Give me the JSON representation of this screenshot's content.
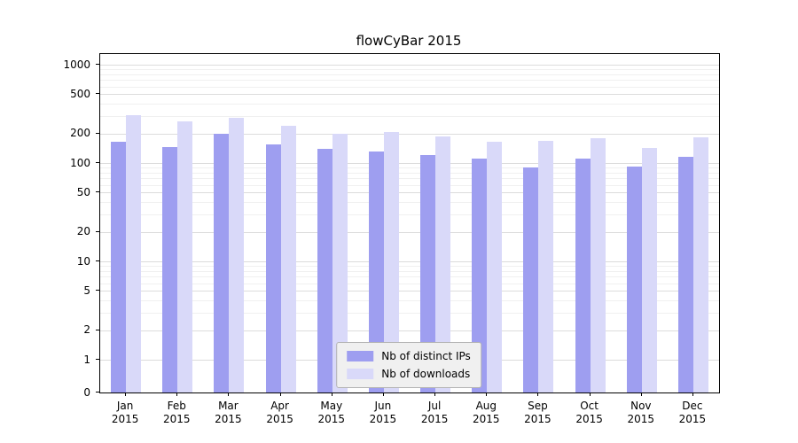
{
  "title": "flowCyBar 2015",
  "colors": {
    "series1": "#9e9ef0",
    "series2": "#d9d9f9",
    "grid_major": "#dcdcdc",
    "grid_minor": "#f0f0f0",
    "axis": "#000000",
    "legend_bg": "#f0f0f0",
    "legend_border": "#b3b3b3"
  },
  "legend": {
    "items": [
      {
        "label": "Nb of distinct IPs"
      },
      {
        "label": "Nb of downloads"
      }
    ]
  },
  "chart_data": {
    "type": "bar",
    "title": "flowCyBar 2015",
    "categories": [
      "Jan 2015",
      "Feb 2015",
      "Mar 2015",
      "Apr 2015",
      "May 2015",
      "Jun 2015",
      "Jul 2015",
      "Aug 2015",
      "Sep 2015",
      "Oct 2015",
      "Nov 2015",
      "Dec 2015"
    ],
    "series": [
      {
        "name": "Nb of distinct IPs",
        "color": "#9e9ef0",
        "values": [
          165,
          145,
          200,
          155,
          140,
          132,
          120,
          110,
          90,
          110,
          92,
          115
        ]
      },
      {
        "name": "Nb of downloads",
        "color": "#d9d9f9",
        "values": [
          310,
          265,
          290,
          240,
          197,
          205,
          185,
          165,
          168,
          178,
          143,
          183
        ]
      }
    ],
    "y_scale": "symlog",
    "y_ticks": [
      0,
      1,
      2,
      5,
      10,
      20,
      50,
      100,
      200,
      500,
      1000
    ],
    "y_minor_gridlines": [
      3,
      4,
      6,
      7,
      8,
      9,
      30,
      40,
      60,
      70,
      80,
      90,
      300,
      400,
      600,
      700,
      800,
      900
    ],
    "ylim": [
      0,
      1300
    ],
    "grid": true,
    "legend_position": "lower center"
  }
}
